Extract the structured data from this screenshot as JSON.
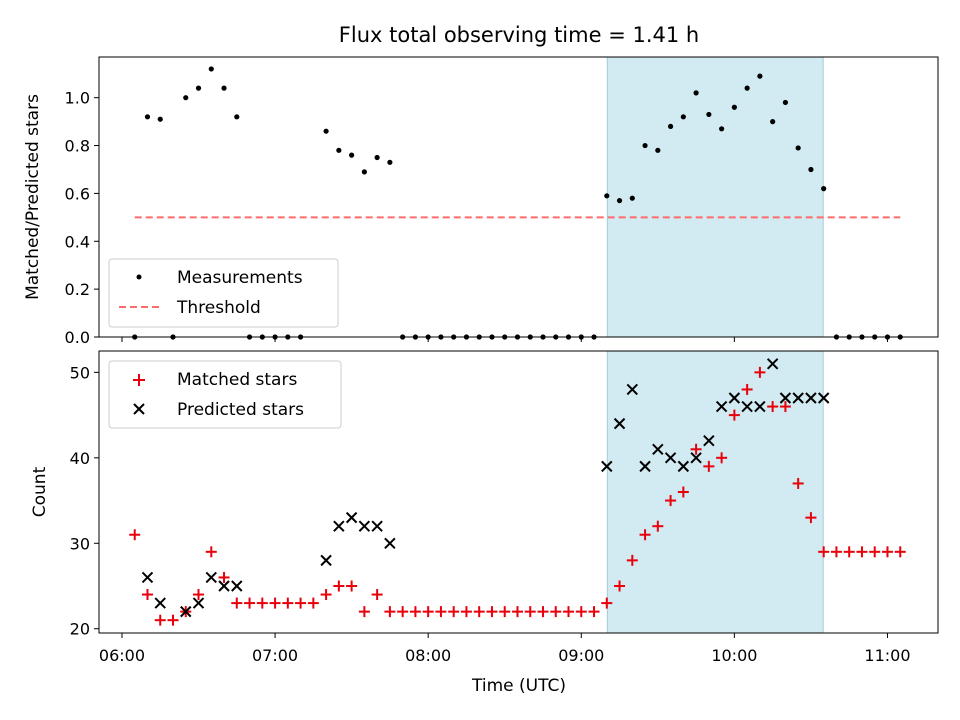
{
  "chart_data": {
    "type": "scatter",
    "title": "Flux total observing time = 1.41 h",
    "xlabel": "Time (UTC)",
    "x_tick_labels": [
      "06:00",
      "07:00",
      "08:00",
      "09:00",
      "10:00",
      "11:00"
    ],
    "x_range_hours": [
      5.85,
      11.33
    ],
    "highlight_span_hours": [
      9.17,
      10.58
    ],
    "highlight_color": "#add8e6",
    "panels": [
      {
        "ylabel": "Matched/Predicted stars",
        "ylim": [
          0,
          1.17
        ],
        "y_ticks": [
          "0.0",
          "0.2",
          "0.4",
          "0.6",
          "0.8",
          "1.0"
        ],
        "legend_location": "lower left",
        "legend": [
          "Measurements",
          "Threshold"
        ],
        "series": [
          {
            "name": "Measurements",
            "marker": "dot",
            "color": "#000000",
            "points": [
              [
                "06:05",
                0
              ],
              [
                "06:10",
                0.92
              ],
              [
                "06:15",
                0.91
              ],
              [
                "06:20",
                0
              ],
              [
                "06:25",
                1.0
              ],
              [
                "06:30",
                1.04
              ],
              [
                "06:35",
                1.12
              ],
              [
                "06:40",
                1.04
              ],
              [
                "06:45",
                0.92
              ],
              [
                "06:50",
                0
              ],
              [
                "06:55",
                0
              ],
              [
                "07:00",
                0
              ],
              [
                "07:05",
                0
              ],
              [
                "07:10",
                0
              ],
              [
                "07:20",
                0.86
              ],
              [
                "07:25",
                0.78
              ],
              [
                "07:30",
                0.76
              ],
              [
                "07:35",
                0.69
              ],
              [
                "07:40",
                0.75
              ],
              [
                "07:45",
                0.73
              ],
              [
                "07:50",
                0
              ],
              [
                "07:55",
                0
              ],
              [
                "08:00",
                0
              ],
              [
                "08:05",
                0
              ],
              [
                "08:10",
                0
              ],
              [
                "08:15",
                0
              ],
              [
                "08:20",
                0
              ],
              [
                "08:25",
                0
              ],
              [
                "08:30",
                0
              ],
              [
                "08:35",
                0
              ],
              [
                "08:40",
                0
              ],
              [
                "08:45",
                0
              ],
              [
                "08:50",
                0
              ],
              [
                "08:55",
                0
              ],
              [
                "09:00",
                0
              ],
              [
                "09:05",
                0
              ],
              [
                "09:10",
                0.59
              ],
              [
                "09:15",
                0.57
              ],
              [
                "09:20",
                0.58
              ],
              [
                "09:25",
                0.8
              ],
              [
                "09:30",
                0.78
              ],
              [
                "09:35",
                0.88
              ],
              [
                "09:40",
                0.92
              ],
              [
                "09:45",
                1.02
              ],
              [
                "09:50",
                0.93
              ],
              [
                "09:55",
                0.87
              ],
              [
                "10:00",
                0.96
              ],
              [
                "10:05",
                1.04
              ],
              [
                "10:10",
                1.09
              ],
              [
                "10:15",
                0.9
              ],
              [
                "10:20",
                0.98
              ],
              [
                "10:25",
                0.79
              ],
              [
                "10:30",
                0.7
              ],
              [
                "10:35",
                0.62
              ],
              [
                "10:40",
                0
              ],
              [
                "10:45",
                0
              ],
              [
                "10:50",
                0
              ],
              [
                "10:55",
                0
              ],
              [
                "11:00",
                0
              ],
              [
                "11:05",
                0
              ]
            ]
          },
          {
            "name": "Threshold",
            "style": "dashed",
            "color": "#ff6b6b",
            "x": [
              "06:05",
              "11:05"
            ],
            "y": [
              0.5,
              0.5
            ]
          }
        ]
      },
      {
        "ylabel": "Count",
        "ylim": [
          19.5,
          52.5
        ],
        "y_ticks": [
          "20",
          "30",
          "40",
          "50"
        ],
        "legend_location": "upper left",
        "legend": [
          "Matched stars",
          "Predicted stars"
        ],
        "series": [
          {
            "name": "Matched stars",
            "marker": "plus",
            "color": "#e8000b",
            "points": [
              [
                "06:05",
                31
              ],
              [
                "06:10",
                24
              ],
              [
                "06:15",
                21
              ],
              [
                "06:20",
                21
              ],
              [
                "06:25",
                22
              ],
              [
                "06:30",
                24
              ],
              [
                "06:35",
                29
              ],
              [
                "06:40",
                26
              ],
              [
                "06:45",
                23
              ],
              [
                "06:50",
                23
              ],
              [
                "06:55",
                23
              ],
              [
                "07:00",
                23
              ],
              [
                "07:05",
                23
              ],
              [
                "07:10",
                23
              ],
              [
                "07:15",
                23
              ],
              [
                "07:20",
                24
              ],
              [
                "07:25",
                25
              ],
              [
                "07:30",
                25
              ],
              [
                "07:35",
                22
              ],
              [
                "07:40",
                24
              ],
              [
                "07:45",
                22
              ],
              [
                "07:50",
                22
              ],
              [
                "07:55",
                22
              ],
              [
                "08:00",
                22
              ],
              [
                "08:05",
                22
              ],
              [
                "08:10",
                22
              ],
              [
                "08:15",
                22
              ],
              [
                "08:20",
                22
              ],
              [
                "08:25",
                22
              ],
              [
                "08:30",
                22
              ],
              [
                "08:35",
                22
              ],
              [
                "08:40",
                22
              ],
              [
                "08:45",
                22
              ],
              [
                "08:50",
                22
              ],
              [
                "08:55",
                22
              ],
              [
                "09:00",
                22
              ],
              [
                "09:05",
                22
              ],
              [
                "09:10",
                23
              ],
              [
                "09:15",
                25
              ],
              [
                "09:20",
                28
              ],
              [
                "09:25",
                31
              ],
              [
                "09:30",
                32
              ],
              [
                "09:35",
                35
              ],
              [
                "09:40",
                36
              ],
              [
                "09:45",
                41
              ],
              [
                "09:50",
                39
              ],
              [
                "09:55",
                40
              ],
              [
                "10:00",
                45
              ],
              [
                "10:05",
                48
              ],
              [
                "10:10",
                50
              ],
              [
                "10:15",
                46
              ],
              [
                "10:20",
                46
              ],
              [
                "10:25",
                37
              ],
              [
                "10:30",
                33
              ],
              [
                "10:35",
                29
              ],
              [
                "10:40",
                29
              ],
              [
                "10:45",
                29
              ],
              [
                "10:50",
                29
              ],
              [
                "10:55",
                29
              ],
              [
                "11:00",
                29
              ],
              [
                "11:05",
                29
              ]
            ]
          },
          {
            "name": "Predicted stars",
            "marker": "x",
            "color": "#000000",
            "points": [
              [
                "06:10",
                26
              ],
              [
                "06:15",
                23
              ],
              [
                "06:25",
                22
              ],
              [
                "06:30",
                23
              ],
              [
                "06:35",
                26
              ],
              [
                "06:40",
                25
              ],
              [
                "06:45",
                25
              ],
              [
                "07:20",
                28
              ],
              [
                "07:25",
                32
              ],
              [
                "07:30",
                33
              ],
              [
                "07:35",
                32
              ],
              [
                "07:40",
                32
              ],
              [
                "07:45",
                30
              ],
              [
                "09:10",
                39
              ],
              [
                "09:15",
                44
              ],
              [
                "09:20",
                48
              ],
              [
                "09:25",
                39
              ],
              [
                "09:30",
                41
              ],
              [
                "09:35",
                40
              ],
              [
                "09:40",
                39
              ],
              [
                "09:45",
                40
              ],
              [
                "09:50",
                42
              ],
              [
                "09:55",
                46
              ],
              [
                "10:00",
                47
              ],
              [
                "10:05",
                46
              ],
              [
                "10:10",
                46
              ],
              [
                "10:15",
                51
              ],
              [
                "10:20",
                47
              ],
              [
                "10:25",
                47
              ],
              [
                "10:30",
                47
              ],
              [
                "10:35",
                47
              ]
            ]
          }
        ]
      }
    ]
  }
}
